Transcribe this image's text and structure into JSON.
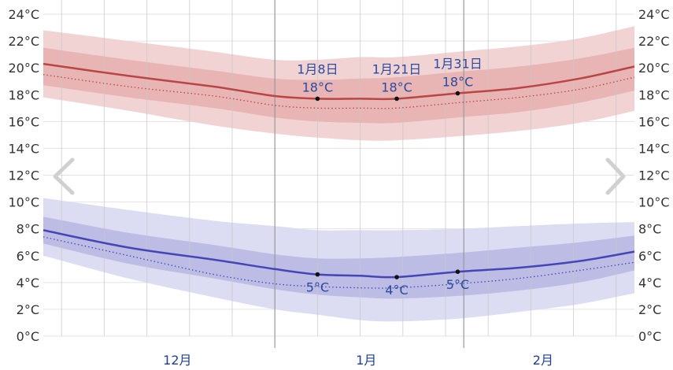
{
  "ui": {
    "prev_icon": "chevron-left-icon",
    "next_icon": "chevron-right-icon"
  },
  "chart_data": {
    "type": "area",
    "title": "",
    "xlabel": "",
    "ylabel": "",
    "x_domain": [
      "2024-11-24",
      "2025-03-01"
    ],
    "y_range": [
      0,
      24
    ],
    "y_ticks": [
      "0°C",
      "2°C",
      "4°C",
      "6°C",
      "8°C",
      "10°C",
      "12°C",
      "14°C",
      "16°C",
      "18°C",
      "20°C",
      "22°C",
      "24°C"
    ],
    "month_labels": [
      {
        "label": "12月",
        "date": "2024-12-16"
      },
      {
        "label": "1月",
        "date": "2025-01-16"
      },
      {
        "label": "2月",
        "date": "2025-02-14"
      }
    ],
    "month_boundaries": [
      "2025-01-01",
      "2025-02-01"
    ],
    "week_lines": [
      "2024-11-27",
      "2024-12-04",
      "2024-12-11",
      "2024-12-18",
      "2024-12-25",
      "2025-01-08",
      "2025-01-15",
      "2025-01-22",
      "2025-01-29",
      "2025-02-05",
      "2025-02-12",
      "2025-02-19",
      "2025-02-26"
    ],
    "colors": {
      "high_line": "#b94545",
      "high_dots": "#b94545",
      "high_band_outer": "#f2d3d3",
      "high_band_inner": "#e8b4b4",
      "low_line": "#4545b8",
      "low_dots": "#4545b8",
      "low_band_outer": "#dcdcf2",
      "low_band_inner": "#bcbce4",
      "grid": "#e3e3e3",
      "week_line": "#c8c8c8",
      "month_line": "#999999"
    },
    "x_dates": [
      "2024-11-24",
      "2024-12-08",
      "2024-12-22",
      "2025-01-01",
      "2025-01-08",
      "2025-01-15",
      "2025-01-21",
      "2025-01-31",
      "2025-02-10",
      "2025-02-20",
      "2025-03-01"
    ],
    "series": [
      {
        "name": "",
        "key": "high_mean",
        "values": [
          20.3,
          19.4,
          18.6,
          17.9,
          17.7,
          17.7,
          17.7,
          18.1,
          18.5,
          19.2,
          20.1
        ]
      },
      {
        "name": "",
        "key": "high_dotted",
        "values": [
          19.5,
          18.6,
          17.9,
          17.2,
          17.0,
          17.0,
          17.0,
          17.4,
          17.8,
          18.4,
          19.3
        ]
      },
      {
        "name": "",
        "key": "high_p10",
        "values": [
          17.8,
          16.8,
          15.7,
          15.1,
          14.8,
          14.6,
          14.6,
          14.9,
          15.3,
          15.9,
          16.8
        ]
      },
      {
        "name": "",
        "key": "high_p25",
        "values": [
          18.7,
          17.8,
          17.0,
          16.3,
          16.0,
          15.9,
          15.9,
          16.3,
          16.7,
          17.4,
          18.3
        ]
      },
      {
        "name": "",
        "key": "high_p75",
        "values": [
          21.5,
          20.6,
          19.8,
          19.2,
          19.1,
          19.2,
          19.3,
          19.7,
          20.1,
          20.7,
          21.5
        ]
      },
      {
        "name": "",
        "key": "high_p90",
        "values": [
          22.8,
          22.0,
          21.2,
          20.6,
          20.6,
          20.8,
          20.8,
          21.2,
          21.6,
          22.2,
          23.1
        ]
      },
      {
        "name": "",
        "key": "low_mean",
        "values": [
          7.9,
          6.6,
          5.7,
          5.0,
          4.6,
          4.5,
          4.4,
          4.8,
          5.1,
          5.6,
          6.3
        ]
      },
      {
        "name": "",
        "key": "low_dotted",
        "values": [
          7.4,
          6.0,
          4.6,
          3.9,
          3.7,
          3.6,
          3.6,
          3.9,
          4.3,
          4.9,
          5.5
        ]
      },
      {
        "name": "",
        "key": "low_p10",
        "values": [
          6.0,
          4.3,
          2.9,
          2.0,
          1.6,
          1.2,
          1.1,
          1.3,
          1.8,
          2.4,
          3.2
        ]
      },
      {
        "name": "",
        "key": "low_p25",
        "values": [
          6.9,
          5.4,
          4.3,
          3.5,
          3.1,
          2.9,
          2.8,
          3.0,
          3.4,
          4.0,
          4.9
        ]
      },
      {
        "name": "",
        "key": "low_p75",
        "values": [
          8.9,
          7.7,
          6.8,
          6.1,
          5.8,
          5.8,
          5.9,
          6.2,
          6.6,
          7.0,
          7.5
        ]
      },
      {
        "name": "",
        "key": "low_p90",
        "values": [
          10.3,
          9.4,
          8.6,
          8.2,
          7.9,
          7.9,
          7.9,
          8.0,
          8.2,
          8.4,
          8.5
        ]
      }
    ],
    "annotations": [
      {
        "date": "2025-01-08",
        "series": "high_mean",
        "value": 17.7,
        "date_label": "1月8日",
        "temp_label": "18°C",
        "position": "above"
      },
      {
        "date": "2025-01-21",
        "series": "high_mean",
        "value": 17.7,
        "date_label": "1月21日",
        "temp_label": "18°C",
        "position": "above"
      },
      {
        "date": "2025-01-31",
        "series": "high_mean",
        "value": 18.1,
        "date_label": "1月31日",
        "temp_label": "18°C",
        "position": "above"
      },
      {
        "date": "2025-01-08",
        "series": "low_mean",
        "value": 4.6,
        "date_label": "",
        "temp_label": "5°C",
        "position": "below"
      },
      {
        "date": "2025-01-21",
        "series": "low_mean",
        "value": 4.4,
        "date_label": "",
        "temp_label": "4°C",
        "position": "below"
      },
      {
        "date": "2025-01-31",
        "series": "low_mean",
        "value": 4.8,
        "date_label": "",
        "temp_label": "5°C",
        "position": "below"
      }
    ]
  }
}
